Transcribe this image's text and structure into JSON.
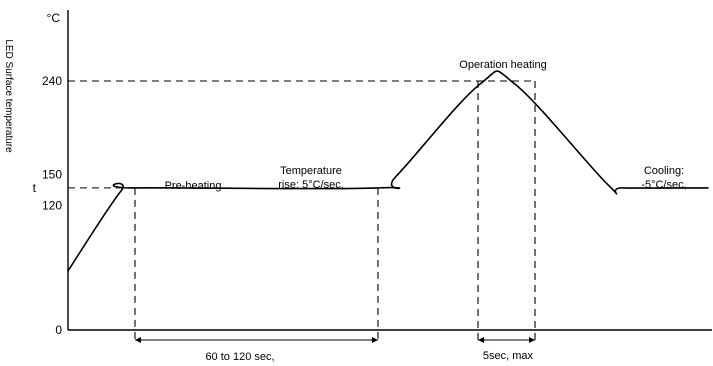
{
  "chart_data": {
    "type": "line",
    "title": "",
    "xlabel": "",
    "ylabel": "LED Surface temperature",
    "yunit": "°C",
    "ylim": [
      0,
      240
    ],
    "grid": false,
    "legend": "none",
    "ytick_labels": [
      {
        "label": "240",
        "value": 240
      },
      {
        "label": "150",
        "value": 150
      },
      {
        "label": "120",
        "value": 120
      },
      {
        "label": "0",
        "value": 0
      }
    ],
    "hold_tick_label": "t",
    "series": [
      {
        "points": [
          {
            "x": 0,
            "y": 57
          },
          {
            "x": 53,
            "y": 134
          },
          {
            "x": 67,
            "y": 137
          },
          {
            "x": 310,
            "y": 137
          },
          {
            "x": 328,
            "y": 148
          },
          {
            "x": 412,
            "y": 237
          },
          {
            "x": 447,
            "y": 237
          },
          {
            "x": 540,
            "y": 140
          },
          {
            "x": 555,
            "y": 137
          },
          {
            "x": 640,
            "y": 137
          }
        ]
      }
    ],
    "reference_lines": {
      "hold_level": 137,
      "peak_level": 240,
      "preheat_start_x": 67,
      "preheat_end_x": 310,
      "peak_window_start_x": 410,
      "peak_window_end_x": 467
    },
    "annotations": [
      {
        "id": "preheating",
        "lines": [
          "Pre-heating"
        ]
      },
      {
        "id": "temperature_rise",
        "lines": [
          "Temperature",
          "rise: 5°C/sec,"
        ]
      },
      {
        "id": "operation_heating",
        "lines": [
          "Operation heating"
        ]
      },
      {
        "id": "cooling",
        "lines": [
          "Cooling:",
          "-5°C/sec,"
        ]
      },
      {
        "id": "preheat_duration",
        "lines": [
          "60 to 120 sec,"
        ]
      },
      {
        "id": "peak_duration",
        "lines": [
          "5sec, max"
        ]
      }
    ]
  }
}
